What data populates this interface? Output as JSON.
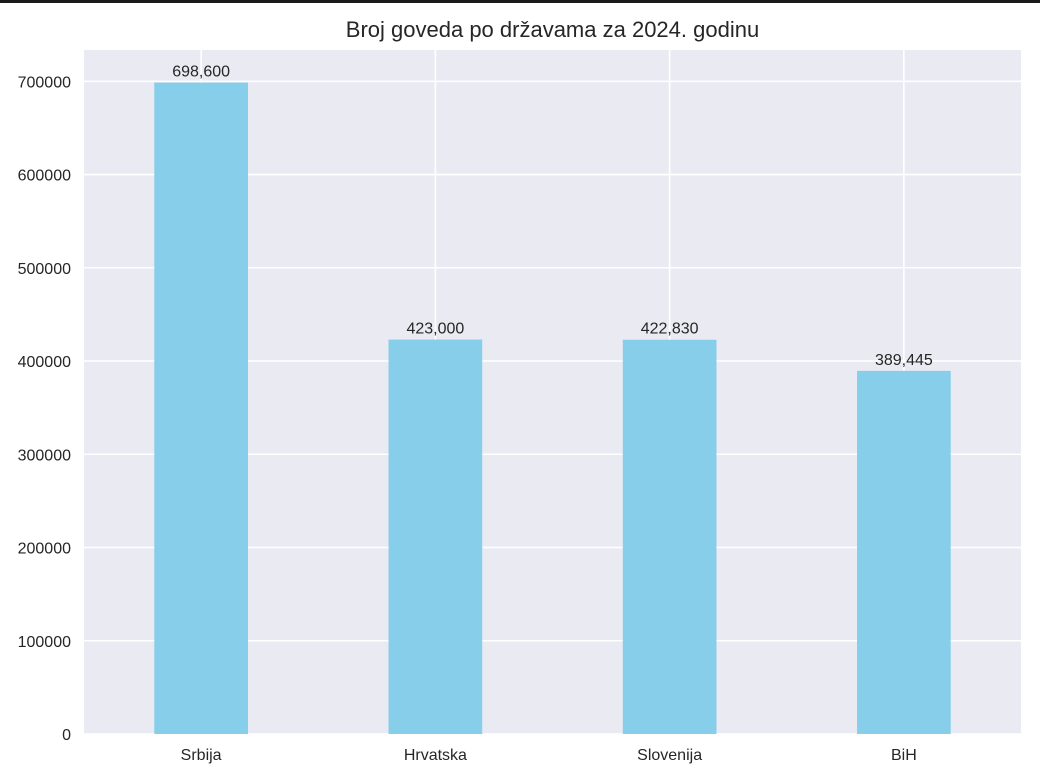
{
  "chart_data": {
    "type": "bar",
    "title": "Broj goveda po državama za 2024. godinu",
    "xlabel": "",
    "ylabel": "",
    "categories": [
      "Srbija",
      "Hrvatska",
      "Slovenija",
      "BiH"
    ],
    "values": [
      698600,
      423000,
      422830,
      389445
    ],
    "value_labels": [
      "698,600",
      "423,000",
      "422,830",
      "389,445"
    ],
    "ylim": [
      0,
      733530
    ],
    "yticks": [
      0,
      100000,
      200000,
      300000,
      400000,
      500000,
      600000,
      700000
    ],
    "ytick_labels": [
      "0",
      "100000",
      "200000",
      "300000",
      "400000",
      "500000",
      "600000",
      "700000"
    ],
    "grid": true,
    "legend": "none",
    "colors": {
      "bar": "#87ceeb",
      "plot_background": "#eaeaf2",
      "grid": "#ffffff",
      "text": "#262626"
    }
  }
}
